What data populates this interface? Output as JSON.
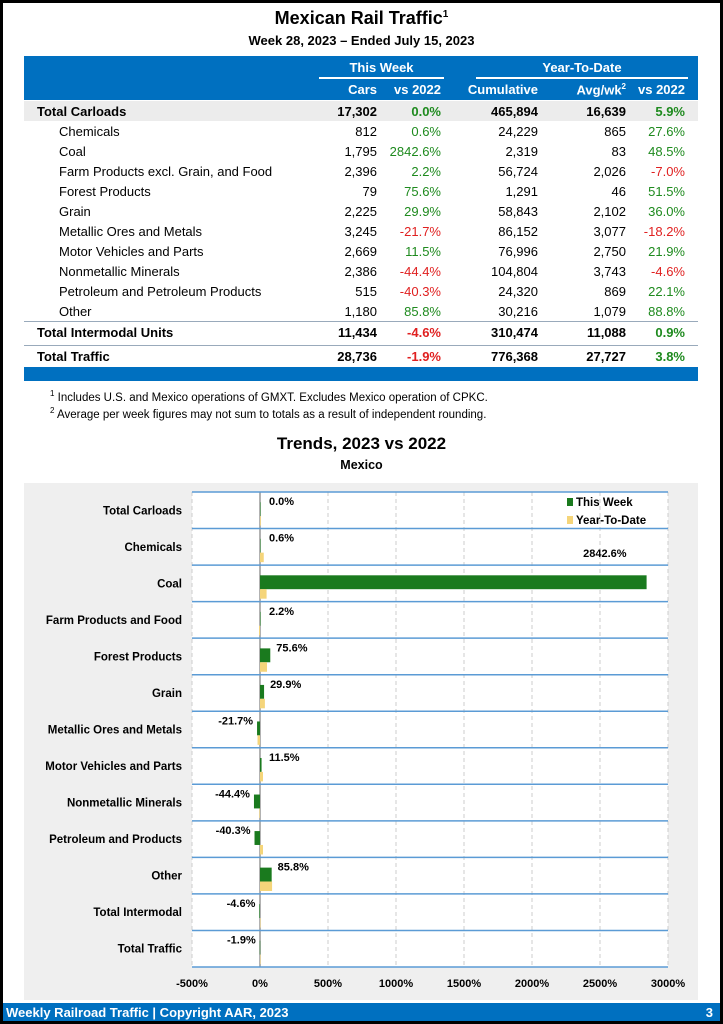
{
  "header": {
    "title": "Mexican Rail Traffic",
    "title_sup": "1",
    "subtitle": "Week 28, 2023 – Ended July 15, 2023"
  },
  "table": {
    "group_this_week": "This Week",
    "group_ytd": "Year-To-Date",
    "columns": [
      "Cars",
      "vs 2022",
      "Cumulative",
      "Avg/wk",
      "vs 2022"
    ],
    "avg_sup": "2",
    "rows": [
      {
        "label": "Total Carloads",
        "cars": "17,302",
        "vs": "0.0%",
        "cum": "465,894",
        "avg": "16,639",
        "ytdvs": "5.9%",
        "bold": true
      },
      {
        "label": "Chemicals",
        "cars": "812",
        "vs": "0.6%",
        "cum": "24,229",
        "avg": "865",
        "ytdvs": "27.6%"
      },
      {
        "label": "Coal",
        "cars": "1,795",
        "vs": "2842.6%",
        "cum": "2,319",
        "avg": "83",
        "ytdvs": "48.5%"
      },
      {
        "label": "Farm Products excl. Grain, and Food",
        "cars": "2,396",
        "vs": "2.2%",
        "cum": "56,724",
        "avg": "2,026",
        "ytdvs": "-7.0%"
      },
      {
        "label": "Forest Products",
        "cars": "79",
        "vs": "75.6%",
        "cum": "1,291",
        "avg": "46",
        "ytdvs": "51.5%"
      },
      {
        "label": "Grain",
        "cars": "2,225",
        "vs": "29.9%",
        "cum": "58,843",
        "avg": "2,102",
        "ytdvs": "36.0%"
      },
      {
        "label": "Metallic Ores and Metals",
        "cars": "3,245",
        "vs": "-21.7%",
        "cum": "86,152",
        "avg": "3,077",
        "ytdvs": "-18.2%"
      },
      {
        "label": "Motor Vehicles and Parts",
        "cars": "2,669",
        "vs": "11.5%",
        "cum": "76,996",
        "avg": "2,750",
        "ytdvs": "21.9%"
      },
      {
        "label": "Nonmetallic Minerals",
        "cars": "2,386",
        "vs": "-44.4%",
        "cum": "104,804",
        "avg": "3,743",
        "ytdvs": "-4.6%"
      },
      {
        "label": "Petroleum and Petroleum Products",
        "cars": "515",
        "vs": "-40.3%",
        "cum": "24,320",
        "avg": "869",
        "ytdvs": "22.1%"
      },
      {
        "label": "Other",
        "cars": "1,180",
        "vs": "85.8%",
        "cum": "30,216",
        "avg": "1,079",
        "ytdvs": "88.8%"
      },
      {
        "label": "Total Intermodal Units",
        "cars": "11,434",
        "vs": "-4.6%",
        "cum": "310,474",
        "avg": "11,088",
        "ytdvs": "0.9%",
        "bold": true
      },
      {
        "label": "Total Traffic",
        "cars": "28,736",
        "vs": "-1.9%",
        "cum": "776,368",
        "avg": "27,727",
        "ytdvs": "3.8%",
        "bold": true
      }
    ]
  },
  "notes": [
    {
      "sup": "1",
      "text": "Includes U.S. and Mexico operations of GMXT. Excludes Mexico operation of CPKC."
    },
    {
      "sup": "2",
      "text": "Average per week figures may not sum to totals as a result of independent rounding."
    }
  ],
  "chart_data": {
    "type": "bar",
    "orientation": "horizontal",
    "title": "Trends, 2023 vs 2022",
    "subtitle": "Mexico",
    "categories": [
      "Total Carloads",
      "Chemicals",
      "Coal",
      "Farm Products and Food",
      "Forest Products",
      "Grain",
      "Metallic Ores and Metals",
      "Motor Vehicles and Parts",
      "Nonmetallic Minerals",
      "Petroleum and Products",
      "Other",
      "Total Intermodal",
      "Total Traffic"
    ],
    "series": [
      {
        "name": "This Week",
        "color": "#1a7a1e",
        "values": [
          0.0,
          0.6,
          2842.6,
          2.2,
          75.6,
          29.9,
          -21.7,
          11.5,
          -44.4,
          -40.3,
          85.8,
          -4.6,
          -1.9
        ]
      },
      {
        "name": "Year-To-Date",
        "color": "#f5d57a",
        "values": [
          5.9,
          27.6,
          48.5,
          -7.0,
          51.5,
          36.0,
          -18.2,
          21.9,
          -4.6,
          22.1,
          88.8,
          0.9,
          3.8
        ]
      }
    ],
    "data_labels": [
      "0.0%",
      "0.6%",
      "2842.6%",
      "2.2%",
      "75.6%",
      "29.9%",
      "-21.7%",
      "11.5%",
      "-44.4%",
      "-40.3%",
      "85.8%",
      "-4.6%",
      "-1.9%"
    ],
    "xlim": [
      -500,
      3000
    ],
    "xticks": [
      "-500%",
      "0%",
      "500%",
      "1000%",
      "1500%",
      "2000%",
      "2500%",
      "3000%"
    ],
    "legend": "top-right",
    "grid": true
  },
  "footer": {
    "text": "Weekly Railroad Traffic | Copyright AAR, 2023",
    "page": "3"
  },
  "colors": {
    "brand_blue": "#0070c0",
    "positive": "#1e8a1e",
    "negative": "#e02020"
  }
}
